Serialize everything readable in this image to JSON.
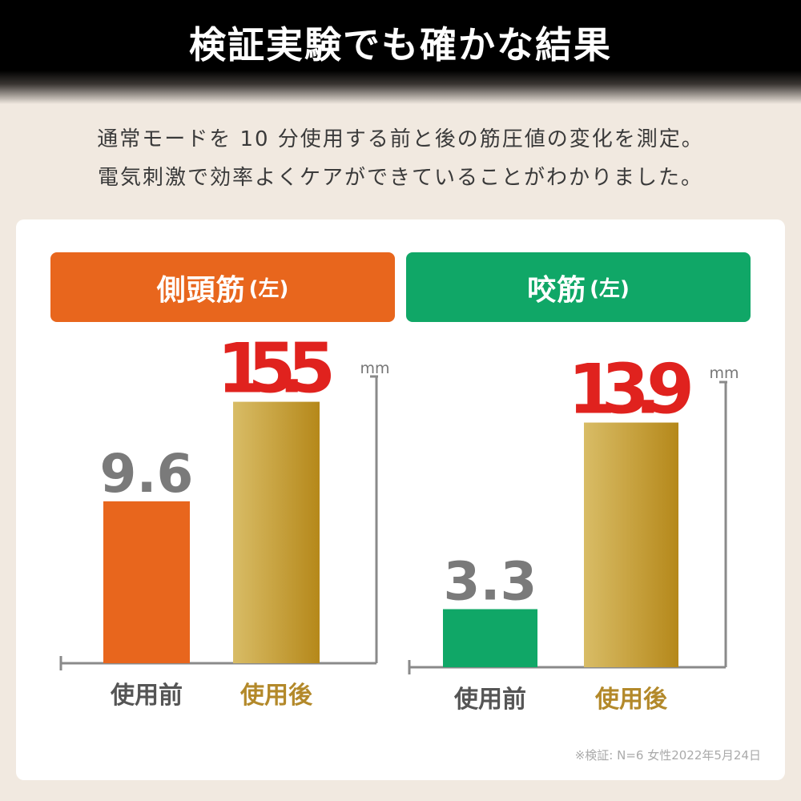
{
  "header": {
    "title": "検証実験でも確かな結果"
  },
  "intro": {
    "line1": "通常モードを 10 分使用する前と後の筋圧値の変化を測定。",
    "line2": "電気刺激で効率よくケアができていることがわかりました。"
  },
  "chart_data": [
    {
      "type": "bar",
      "title": "側頭筋",
      "title_suffix": "(左)",
      "unit": "mm",
      "categories": [
        "使用前",
        "使用後"
      ],
      "values": [
        9.6,
        15.5
      ],
      "value_labels": [
        "9.6",
        "15.5"
      ],
      "ylim": [
        0,
        17
      ],
      "grid": false,
      "colors": {
        "header": "#e8661d",
        "before": "#e8661d",
        "after": "#b68a1c"
      }
    },
    {
      "type": "bar",
      "title": "咬筋",
      "title_suffix": "(左)",
      "unit": "mm",
      "categories": [
        "使用前",
        "使用後"
      ],
      "values": [
        3.3,
        13.9
      ],
      "value_labels": [
        "3.3",
        "13.9"
      ],
      "ylim": [
        0,
        16.2
      ],
      "grid": false,
      "colors": {
        "header": "#10a767",
        "before": "#10a767",
        "after": "#b68a1c"
      }
    }
  ],
  "colors": {
    "value_before": "#7a7a7a",
    "value_after": "#e0221e",
    "label_before": "#555555",
    "label_after": "#b3892a",
    "axis": "#8a8a8a"
  },
  "footnote": "※検証: N=6 女性2022年5月24日"
}
